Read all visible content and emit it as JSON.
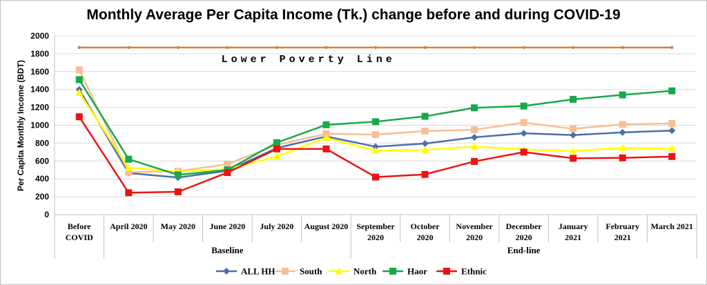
{
  "chart_data": {
    "type": "line",
    "title": "Monthly Average Per Capita Income (Tk.) change before and during COVID-19",
    "ylabel": "Per Capita Monthly Income (BDT)",
    "ylim": [
      0,
      2000
    ],
    "yticks": [
      0,
      200,
      400,
      600,
      800,
      1000,
      1200,
      1400,
      1600,
      1800,
      2000
    ],
    "gridlines": true,
    "legend_position": "bottom",
    "categories": [
      [
        "Before",
        "COVID"
      ],
      [
        "April 2020"
      ],
      [
        "May 2020"
      ],
      [
        "June 2020"
      ],
      [
        "July 2020"
      ],
      [
        "August 2020"
      ],
      [
        "September",
        "2020"
      ],
      [
        "October",
        "2020"
      ],
      [
        "November",
        "2020"
      ],
      [
        "December",
        "2020"
      ],
      [
        "January",
        "2021"
      ],
      [
        "February",
        "2021"
      ],
      [
        "March 2021"
      ]
    ],
    "groups": [
      {
        "label": "Baseline",
        "from": 1,
        "to": 5
      },
      {
        "label": "End-line",
        "from": 6,
        "to": 12
      }
    ],
    "reference_line": {
      "label": "Lower Poverty Line",
      "value": 1870,
      "color": "#E07B39"
    },
    "series": [
      {
        "name": "ALL HH",
        "color": "#4A6FA5",
        "marker": "diamond",
        "values": [
          1400,
          465,
          415,
          490,
          745,
          875,
          760,
          795,
          865,
          910,
          890,
          920,
          940
        ]
      },
      {
        "name": "South",
        "color": "#F7BE94",
        "marker": "square",
        "values": [
          1620,
          475,
          485,
          565,
          780,
          905,
          895,
          935,
          950,
          1030,
          960,
          1010,
          1020
        ]
      },
      {
        "name": "North",
        "color": "#FFFF00",
        "marker": "triangle",
        "values": [
          1365,
          525,
          480,
          510,
          650,
          860,
          715,
          725,
          760,
          730,
          710,
          745,
          740
        ]
      },
      {
        "name": "Haor",
        "color": "#17A84A",
        "marker": "square",
        "values": [
          1510,
          620,
          445,
          500,
          805,
          1005,
          1040,
          1100,
          1195,
          1215,
          1290,
          1340,
          1385
        ]
      },
      {
        "name": "Ethnic",
        "color": "#EE1111",
        "marker": "square",
        "values": [
          1095,
          245,
          255,
          470,
          735,
          735,
          420,
          450,
          595,
          700,
          630,
          635,
          650
        ]
      }
    ]
  }
}
